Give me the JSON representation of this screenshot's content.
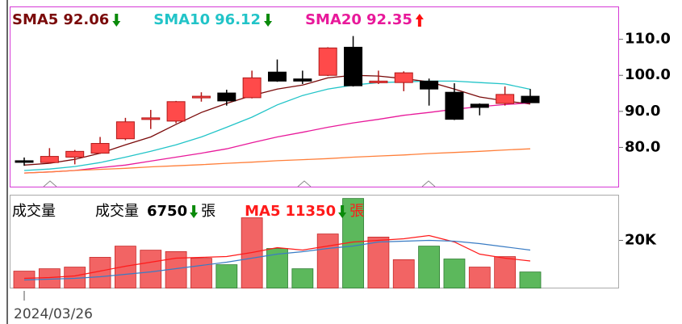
{
  "chart_data": [
    {
      "type": "candlestick",
      "categories": [
        "2024/03/26",
        null,
        null,
        null,
        null,
        null,
        null,
        null,
        null,
        null,
        null,
        null,
        null,
        null,
        null,
        null,
        null,
        null,
        null,
        null,
        null
      ],
      "open": [
        76.3,
        75.8,
        77.3,
        78.4,
        82.4,
        87.8,
        87.3,
        93.8,
        95.1,
        93.8,
        100.9,
        99.0,
        100.0,
        107.8,
        98.0,
        98.0,
        98.4,
        95.3,
        92.0,
        92.2,
        94.2
      ],
      "high": [
        77.2,
        79.8,
        79.3,
        82.9,
        88.2,
        90.4,
        92.9,
        95.3,
        96.0,
        101.3,
        104.4,
        101.3,
        107.8,
        110.9,
        101.3,
        101.1,
        99.1,
        97.8,
        92.2,
        96.9,
        96.2
      ],
      "low": [
        74.9,
        75.5,
        75.3,
        78.2,
        82.0,
        85.1,
        86.7,
        92.7,
        91.6,
        93.6,
        98.2,
        97.6,
        99.8,
        96.9,
        97.6,
        95.6,
        91.6,
        87.6,
        88.9,
        91.6,
        92.4
      ],
      "close": [
        76.0,
        77.5,
        78.9,
        81.1,
        87.1,
        88.2,
        92.7,
        94.2,
        92.9,
        99.3,
        98.4,
        98.4,
        107.6,
        97.1,
        98.4,
        100.7,
        96.2,
        87.8,
        91.1,
        94.7,
        92.4
      ],
      "up_color": "#ff4a4a",
      "down_color": "#000000",
      "ylim": [
        69,
        119
      ],
      "yticks": [
        {
          "value": 80,
          "label": "80.0"
        },
        {
          "value": 90,
          "label": "90.0"
        },
        {
          "value": 100,
          "label": "100.0"
        },
        {
          "value": 110,
          "label": "110.0"
        }
      ],
      "series": [
        {
          "name": "SMA5",
          "color": "#7a0a0a",
          "trend": "down",
          "values": [
            75.1,
            75.6,
            76.7,
            78.4,
            80.7,
            82.9,
            86.4,
            89.7,
            92.2,
            94.4,
            96.2,
            97.3,
            99.3,
            100.0,
            99.8,
            99.1,
            98.2,
            96.2,
            94.0,
            92.9,
            92.06
          ]
        },
        {
          "name": "SMA10",
          "color": "#22c4c8",
          "trend": "down",
          "values": [
            73.6,
            74.0,
            74.7,
            75.8,
            77.3,
            78.9,
            80.7,
            82.9,
            85.6,
            88.4,
            91.8,
            94.4,
            96.2,
            97.3,
            98.0,
            98.2,
            98.4,
            98.4,
            98.0,
            97.6,
            96.12
          ]
        },
        {
          "name": "SMA20",
          "color": "#e8199a",
          "trend": "up",
          "values": [
            72.9,
            73.2,
            73.6,
            74.4,
            75.1,
            76.2,
            77.3,
            78.4,
            79.6,
            81.3,
            82.9,
            84.2,
            85.6,
            86.8,
            87.8,
            88.9,
            89.7,
            90.6,
            91.3,
            91.9,
            92.35
          ]
        },
        {
          "color": "#ff7f3a",
          "values": [
            72.9,
            73.2,
            73.6,
            73.9,
            74.2,
            74.6,
            74.9,
            75.2,
            75.6,
            75.9,
            76.3,
            76.6,
            76.9,
            77.3,
            77.6,
            77.9,
            78.3,
            78.6,
            78.9,
            79.3,
            79.6
          ]
        }
      ]
    },
    {
      "type": "bar",
      "title": "成交量",
      "volume_name": "成交量",
      "volume_trend": "down",
      "unit": "張",
      "values": [
        7100,
        8100,
        8800,
        12900,
        17600,
        15900,
        15300,
        12500,
        9800,
        29500,
        16600,
        8100,
        22700,
        37600,
        21400,
        11900,
        17600,
        12200,
        8800,
        13200,
        6750
      ],
      "colors": [
        "#f26464",
        "#f26464",
        "#f26464",
        "#f26464",
        "#f26464",
        "#f26464",
        "#f26464",
        "#f26464",
        "#5cb85c",
        "#f26464",
        "#5cb85c",
        "#5cb85c",
        "#f26464",
        "#5cb85c",
        "#f26464",
        "#f26464",
        "#5cb85c",
        "#5cb85c",
        "#f26464",
        "#f26464",
        "#5cb85c"
      ],
      "ylim": [
        0,
        39000
      ],
      "yticks": [
        {
          "value": 20000,
          "label": "20K"
        }
      ],
      "series": [
        {
          "name": "MA5",
          "color": "#ff1a1a",
          "trend": "down",
          "values": [
            4070,
            4410,
            5080,
            7120,
            9150,
            10850,
            12540,
            12880,
            13220,
            14920,
            16950,
            15930,
            17630,
            19320,
            20000,
            20680,
            22030,
            19320,
            14240,
            12540,
            11350
          ]
        },
        {
          "color": "#3a7cc4",
          "values": [
            3390,
            3730,
            4070,
            4750,
            5760,
            6780,
            8140,
            9490,
            10850,
            12540,
            14240,
            15250,
            16610,
            17630,
            19320,
            19660,
            20000,
            19660,
            18640,
            17290,
            15930
          ]
        }
      ]
    }
  ]
}
